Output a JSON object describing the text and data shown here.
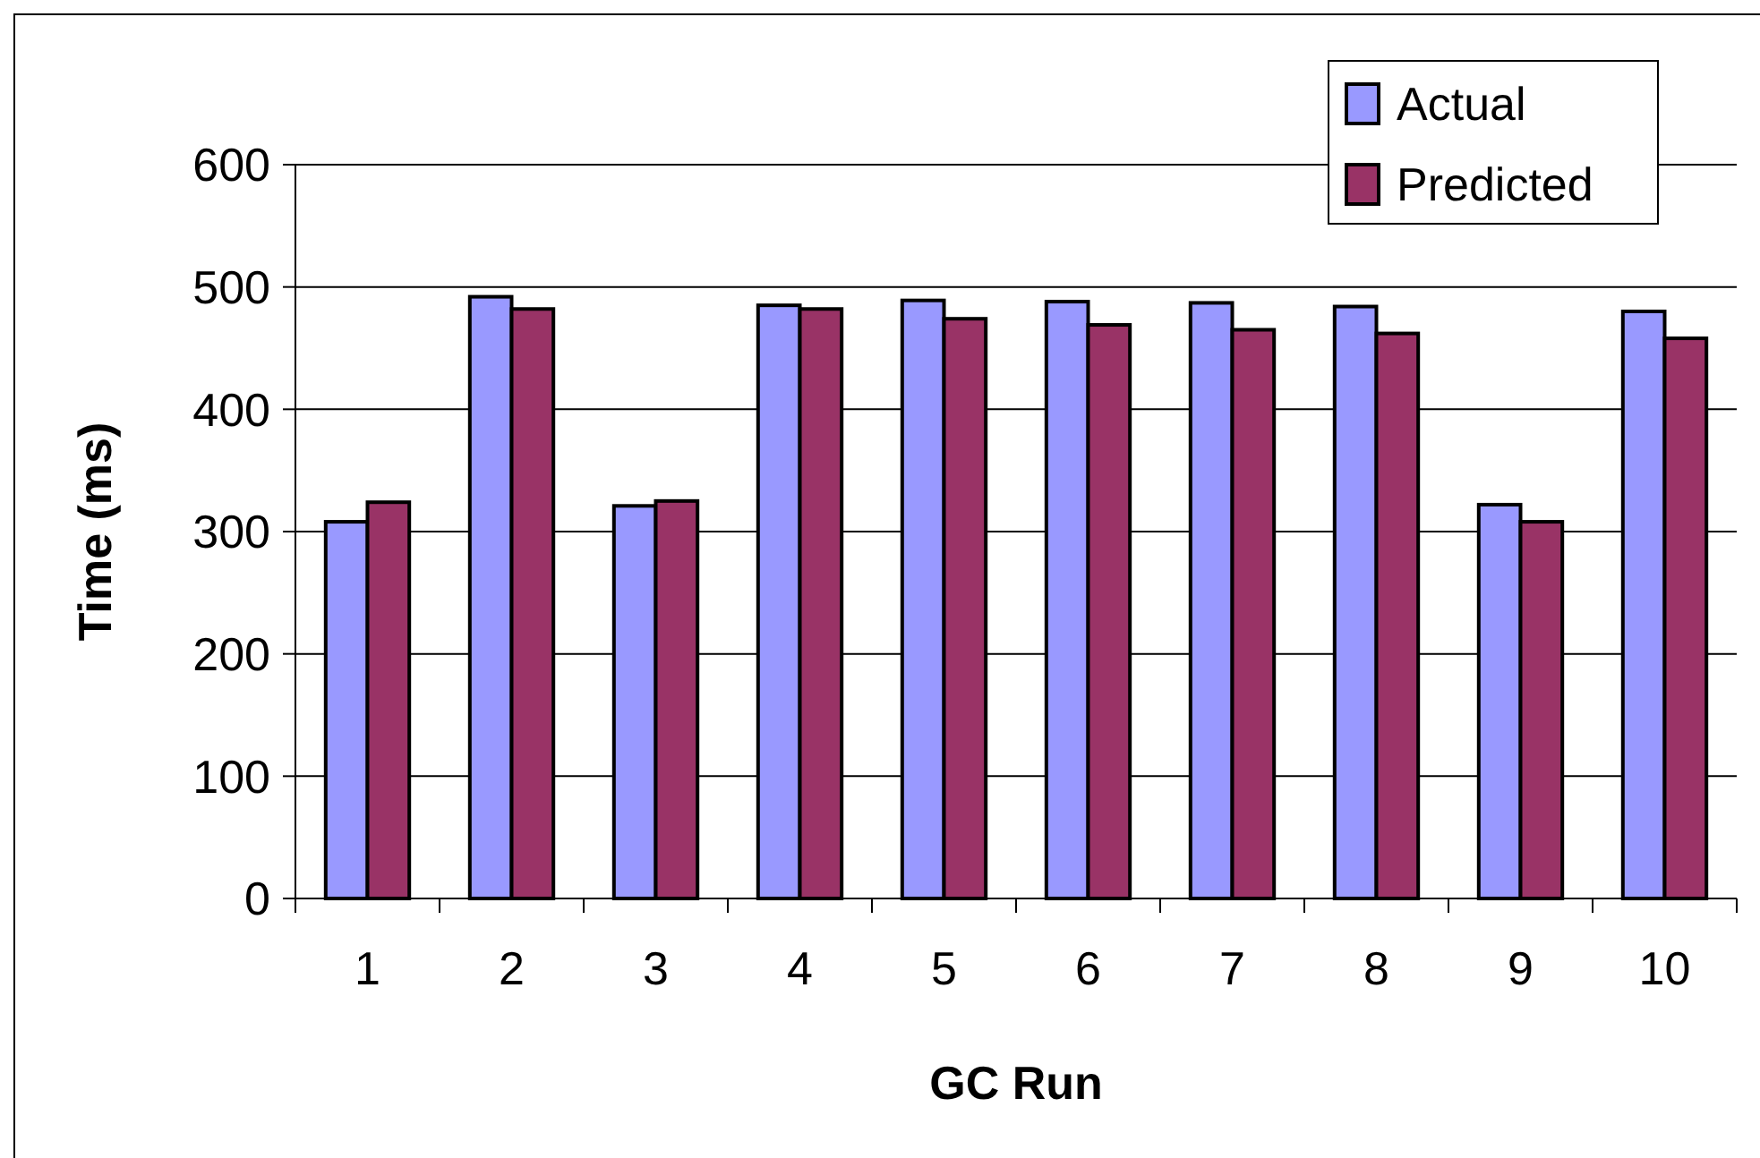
{
  "chart_data": {
    "type": "bar",
    "xlabel": "GC Run",
    "ylabel": "Time (ms)",
    "categories": [
      "1",
      "2",
      "3",
      "4",
      "5",
      "6",
      "7",
      "8",
      "9",
      "10"
    ],
    "series": [
      {
        "name": "Actual",
        "color": "#9999ff",
        "values": [
          308,
          492,
          321,
          485,
          489,
          488,
          487,
          484,
          322,
          480
        ]
      },
      {
        "name": "Predicted",
        "color": "#993366",
        "values": [
          324,
          482,
          325,
          482,
          474,
          469,
          465,
          462,
          308,
          458
        ]
      }
    ],
    "ylim": [
      0,
      600
    ],
    "yticks": [
      0,
      100,
      200,
      300,
      400,
      500,
      600
    ],
    "grid": "y",
    "legend": "top right"
  }
}
